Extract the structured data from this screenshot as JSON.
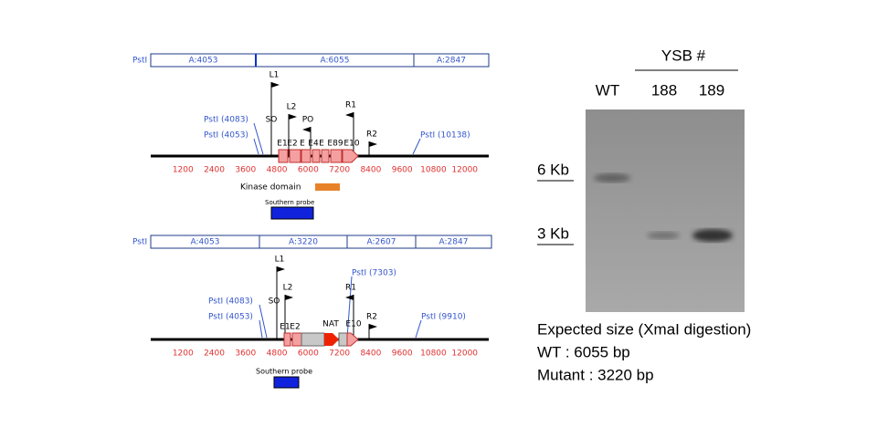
{
  "wt_map": {
    "fragment_label": "PstI",
    "segments": [
      "A:4053",
      "A:6055",
      "A:2847"
    ],
    "sites": [
      "PstI (4083)",
      "PstI (4053)",
      "PstI (10138)"
    ],
    "primers": [
      "L1",
      "L2",
      "PO",
      "R1",
      "R2",
      "SO"
    ],
    "exons": [
      "E1",
      "E2",
      "E",
      "E4",
      "E",
      "E89",
      "E10"
    ],
    "scale": [
      1200,
      2400,
      3600,
      4800,
      6000,
      7200,
      8400,
      9600,
      10800,
      12000
    ],
    "domain_label": "Kinase domain",
    "probe_label": "Southern probe"
  },
  "mutant_map": {
    "fragment_label": "PstI",
    "segments": [
      "A:4053",
      "A:3220",
      "A:2607",
      "A:2847"
    ],
    "sites": [
      "PstI (4083)",
      "PstI (4053)",
      "PstI (7303)",
      "PstI (9910)"
    ],
    "primers": [
      "L1",
      "L2",
      "R1",
      "R2",
      "SO"
    ],
    "exons": [
      "E1",
      "E2",
      "NAT",
      "E10"
    ],
    "scale": [
      1200,
      2400,
      3600,
      4800,
      6000,
      7200,
      8400,
      9600,
      10800,
      12000
    ],
    "probe_label": "Southern probe"
  },
  "gel": {
    "header": "YSB #",
    "lanes": [
      "WT",
      "188",
      "189"
    ],
    "markers": [
      "6 Kb",
      "3 Kb"
    ],
    "notes": [
      "Expected size (XmaI digestion)",
      "WT : 6055 bp",
      "Mutant : 3220 bp"
    ]
  }
}
